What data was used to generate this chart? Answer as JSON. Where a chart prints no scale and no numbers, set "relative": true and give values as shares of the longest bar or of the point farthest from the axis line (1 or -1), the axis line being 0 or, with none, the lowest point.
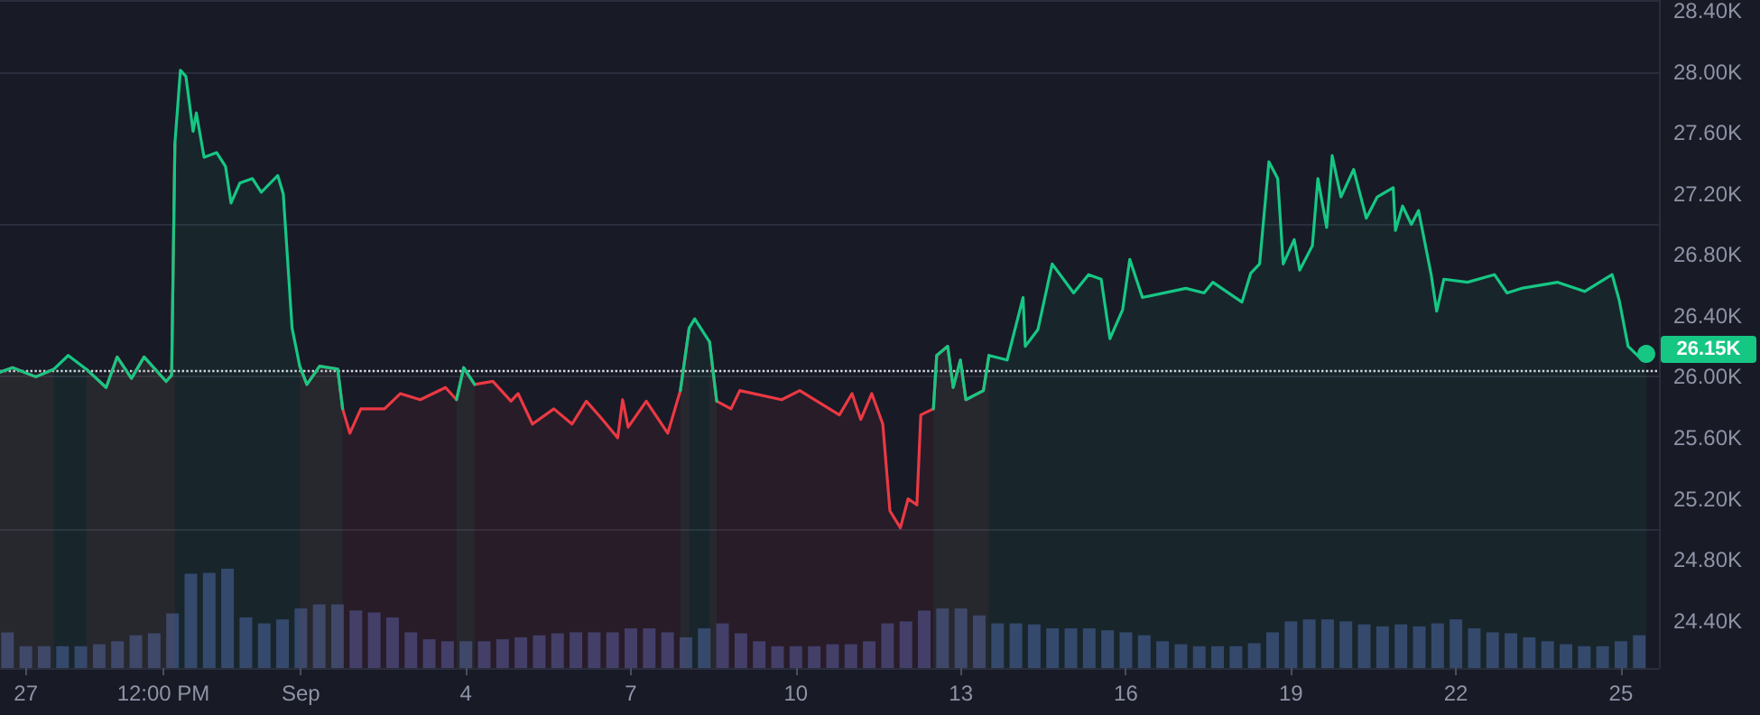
{
  "chart_data": [
    {
      "type": "area",
      "xlim": [
        "--08-26T12:43",
        "--09-25T16:34"
      ],
      "ylim": [
        24090,
        28470
      ],
      "xticks": [
        {
          "value": "--08-27",
          "label": "27"
        },
        {
          "value": "--08-29T12:00",
          "label": "12:00 PM"
        },
        {
          "value": "--09-01",
          "label": "Sep"
        },
        {
          "value": "--09-04",
          "label": "4"
        },
        {
          "value": "--09-07",
          "label": "7"
        },
        {
          "value": "--09-10",
          "label": "10"
        },
        {
          "value": "--09-13",
          "label": "13"
        },
        {
          "value": "--09-16",
          "label": "16"
        },
        {
          "value": "--09-19",
          "label": "19"
        },
        {
          "value": "--09-22",
          "label": "22"
        },
        {
          "value": "--09-25",
          "label": "25"
        }
      ],
      "yticks": [
        {
          "value": 24400,
          "label": "24.40K"
        },
        {
          "value": 24800,
          "label": "24.80K"
        },
        {
          "value": 25200,
          "label": "25.20K"
        },
        {
          "value": 25600,
          "label": "25.60K"
        },
        {
          "value": 26000,
          "label": "26.00K"
        },
        {
          "value": 26400,
          "label": "26.40K"
        },
        {
          "value": 26800,
          "label": "26.80K"
        },
        {
          "value": 27200,
          "label": "27.20K"
        },
        {
          "value": 27600,
          "label": "27.60K"
        },
        {
          "value": 28000,
          "label": "28.00K"
        },
        {
          "value": 28400,
          "label": "28.40K"
        }
      ],
      "grid": "y",
      "x": [
        "--08-26T12:43",
        "--08-26T18:14",
        "--08-27T04:19",
        "--08-27T12:14",
        "--08-27T18:29",
        "--08-28T02:24",
        "--08-28T11:02",
        "--08-28T15:50",
        "--08-28T22:05",
        "--08-29T03:36",
        "--08-29T13:12",
        "--08-29T15:36",
        "--08-29T17:02",
        "--08-29T19:26",
        "--08-29T21:50",
        "--08-30T00:58",
        "--08-30T02:24",
        "--08-30T05:46",
        "--08-30T11:17",
        "--08-30T15:07",
        "--08-30T17:31",
        "--08-30T21:22",
        "--08-31T02:53",
        "--08-31T06:43",
        "--08-31T13:55",
        "--08-31T16:19",
        "--08-31T20:10",
        "--08-31T23:31",
        "--09-01T02:38",
        "--09-01T08:10",
        "--09-01T16:05",
        "--09-01T18:14",
        "--09-01T21:22",
        "--09-02T02:10",
        "--09-02T12:29",
        "--09-02T19:26",
        "--09-03T04:05",
        "--09-03T15:07",
        "--09-03T19:55",
        "--09-03T23:02",
        "--09-04T03:50",
        "--09-04T11:46",
        "--09-04T19:41",
        "--09-04T22:48",
        "--09-05T05:02",
        "--09-05T14:24",
        "--09-05T22:19",
        "--09-06T04:34",
        "--09-06T11:02",
        "--09-06T18:14",
        "--09-06T20:24",
        "--09-06T22:48",
        "--09-07T06:43",
        "--09-07T16:05",
        "--09-07T21:36",
        "--09-08T01:26",
        "--09-08T03:50",
        "--09-08T10:19",
        "--09-08T13:26",
        "--09-08T19:41",
        "--09-08T23:31",
        "--09-09T17:46",
        "--09-10T01:41",
        "--09-10T18:58",
        "--09-11T00:29",
        "--09-11T04:19",
        "--09-11T09:07",
        "--09-11T13:55",
        "--09-11T17:02",
        "--09-11T21:36",
        "--09-12T00:58",
        "--09-12T04:48",
        "--09-12T06:29",
        "--09-12T12:00",
        "--09-12T13:26",
        "--09-12T18:14",
        "--09-12T20:38",
        "--09-12T23:46",
        "--09-13T02:10",
        "--09-13T09:50",
        "--09-13T12:14",
        "--09-13T20:10",
        "--09-14T03:07",
        "--09-14T04:05",
        "--09-14T09:36",
        "--09-14T15:50",
        "--09-15T01:12",
        "--09-15T07:41",
        "--09-15T13:12",
        "--09-15T17:02",
        "--09-15T22:34",
        "--09-16T01:41",
        "--09-16T07:12",
        "--09-17T02:10",
        "--09-17T10:05",
        "--09-17T13:55",
        "--09-18T02:38",
        "--09-18T06:29",
        "--09-18T10:19",
        "--09-18T14:24",
        "--09-18T18:14",
        "--09-18T20:38",
        "--09-19T01:26",
        "--09-19T03:50",
        "--09-19T09:22",
        "--09-19T11:46",
        "--09-19T15:36",
        "--09-19T18:00",
        "--09-19T21:50",
        "--09-20T03:22",
        "--09-20T08:53",
        "--09-20T13:41",
        "--09-20T20:38",
        "--09-20T21:36",
        "--09-21T00:43",
        "--09-21T04:34",
        "--09-21T07:41",
        "--09-21T13:12",
        "--09-21T15:36",
        "--09-21T18:43",
        "--09-22T05:02",
        "--09-22T16:48",
        "--09-22T22:19",
        "--09-23T04:34",
        "--09-23T20:24",
        "--09-24T08:10",
        "--09-24T20:10",
        "--09-24T23:17",
        "--09-25T03:07",
        "--09-25T07:55",
        "--09-25T11:02"
      ],
      "series": [
        {
          "color": "#16c784",
          "values": [
            26030,
            26060,
            26000,
            26050,
            26140,
            26050,
            25930,
            26130,
            25990,
            26130,
            25970,
            26010,
            27530,
            28010,
            27970,
            27610,
            27730,
            27440,
            27470,
            27380,
            27140,
            27270,
            27300,
            27210,
            27320,
            27200,
            26320,
            26070,
            25950,
            26070,
            26050,
            25790,
            null,
            null,
            null,
            null,
            null,
            null,
            25850,
            26060,
            25950,
            null,
            null,
            null,
            null,
            null,
            null,
            null,
            null,
            null,
            null,
            null,
            null,
            null,
            25910,
            26320,
            26380,
            26230,
            25840,
            null,
            null,
            null,
            null,
            null,
            null,
            null,
            null,
            null,
            null,
            null,
            null,
            null,
            null,
            25790,
            26140,
            26200,
            25930,
            26110,
            25850,
            25910,
            26140,
            26110,
            26520,
            26200,
            26310,
            26740,
            26550,
            26670,
            26640,
            26250,
            26440,
            26770,
            26520,
            26580,
            26550,
            26620,
            26490,
            26680,
            26740,
            27410,
            27300,
            26740,
            26900,
            26700,
            26860,
            27300,
            26980,
            27450,
            27180,
            27360,
            27040,
            27180,
            27240,
            26960,
            27120,
            27000,
            27090,
            26670,
            26430,
            26640,
            26620,
            26670,
            26550,
            26580,
            26620,
            26560,
            26670,
            26500,
            26200,
            26130,
            26150
          ]
        },
        {
          "color": "#ea3943",
          "values": [
            26030,
            26060,
            26000,
            26050,
            null,
            26050,
            25930,
            26130,
            25990,
            26130,
            25970,
            26010,
            27530,
            null,
            null,
            null,
            null,
            null,
            null,
            null,
            null,
            null,
            null,
            null,
            null,
            null,
            null,
            26070,
            25950,
            26070,
            26050,
            25790,
            25630,
            25790,
            25790,
            25890,
            25850,
            25930,
            25850,
            26060,
            25950,
            25970,
            25840,
            25890,
            25690,
            25790,
            25690,
            25840,
            25730,
            25600,
            25850,
            25670,
            25840,
            25630,
            25910,
            26320,
            null,
            26230,
            25840,
            25790,
            25910,
            25850,
            25910,
            25750,
            25890,
            25720,
            25890,
            25690,
            25120,
            25010,
            25200,
            25160,
            25750,
            25790,
            26140,
            26200,
            25930,
            26110,
            25850,
            25910,
            26140,
            null,
            null,
            null,
            null,
            null,
            null,
            null,
            null,
            null,
            null,
            null,
            null,
            null,
            null,
            null,
            null,
            null,
            null,
            null,
            null,
            null,
            null,
            null,
            null,
            null,
            null,
            null,
            null,
            null,
            null,
            null,
            null,
            null,
            null,
            null,
            null,
            null,
            null,
            null,
            null,
            null,
            null,
            null,
            null,
            null,
            null,
            null,
            null,
            null,
            null
          ]
        }
      ],
      "ref_lines": [
        {
          "axis": "y",
          "value": 26040,
          "line_style": "dotted",
          "color": "#d6d8e0"
        }
      ],
      "annotations": [
        {
          "text": "26.15K",
          "x": "--09-25T11:02",
          "y": 26150
        }
      ]
    },
    {
      "type": "bar",
      "relative": true,
      "tick_labels": false,
      "xlim": [
        "--08-26T12:43",
        "--09-25T16:34"
      ],
      "color": "#36406b",
      "x": [
        "--08-26T16:00",
        "--08-27T00:00",
        "--08-27T08:00",
        "--08-27T16:00",
        "--08-28T00:00",
        "--08-28T08:00",
        "--08-28T16:00",
        "--08-29T00:00",
        "--08-29T08:00",
        "--08-29T16:00",
        "--08-30T00:00",
        "--08-30T08:00",
        "--08-30T16:00",
        "--08-31T00:00",
        "--08-31T08:00",
        "--08-31T16:00",
        "--09-01T00:00",
        "--09-01T08:00",
        "--09-01T16:00",
        "--09-02T00:00",
        "--09-02T08:00",
        "--09-02T16:00",
        "--09-03T00:00",
        "--09-03T08:00",
        "--09-03T16:00",
        "--09-04T00:00",
        "--09-04T08:00",
        "--09-04T16:00",
        "--09-05T00:00",
        "--09-05T08:00",
        "--09-05T16:00",
        "--09-06T00:00",
        "--09-06T08:00",
        "--09-06T16:00",
        "--09-07T00:00",
        "--09-07T08:00",
        "--09-07T16:00",
        "--09-08T00:00",
        "--09-08T08:00",
        "--09-08T16:00",
        "--09-09T00:00",
        "--09-09T08:00",
        "--09-09T16:00",
        "--09-10T00:00",
        "--09-10T08:00",
        "--09-10T16:00",
        "--09-11T00:00",
        "--09-11T08:00",
        "--09-11T16:00",
        "--09-12T00:00",
        "--09-12T08:00",
        "--09-12T16:00",
        "--09-13T00:00",
        "--09-13T08:00",
        "--09-13T16:00",
        "--09-14T00:00",
        "--09-14T08:00",
        "--09-14T16:00",
        "--09-15T00:00",
        "--09-15T08:00",
        "--09-15T16:00",
        "--09-16T00:00",
        "--09-16T08:00",
        "--09-16T16:00",
        "--09-17T00:00",
        "--09-17T08:00",
        "--09-17T16:00",
        "--09-18T00:00",
        "--09-18T08:00",
        "--09-18T16:00",
        "--09-19T00:00",
        "--09-19T08:00",
        "--09-19T16:00",
        "--09-20T00:00",
        "--09-20T08:00",
        "--09-20T16:00",
        "--09-21T00:00",
        "--09-21T08:00",
        "--09-21T16:00",
        "--09-22T00:00",
        "--09-22T08:00",
        "--09-22T16:00",
        "--09-23T00:00",
        "--09-23T08:00",
        "--09-23T16:00",
        "--09-24T00:00",
        "--09-24T08:00",
        "--09-24T16:00",
        "--09-25T00:00",
        "--09-25T08:00"
      ],
      "values": [
        0.36,
        0.22,
        0.22,
        0.22,
        0.22,
        0.24,
        0.27,
        0.33,
        0.35,
        0.55,
        0.95,
        0.96,
        1,
        0.51,
        0.45,
        0.49,
        0.6,
        0.64,
        0.64,
        0.58,
        0.56,
        0.51,
        0.36,
        0.29,
        0.27,
        0.27,
        0.27,
        0.29,
        0.31,
        0.33,
        0.35,
        0.36,
        0.36,
        0.36,
        0.4,
        0.4,
        0.36,
        0.31,
        0.4,
        0.45,
        0.35,
        0.27,
        0.22,
        0.22,
        0.22,
        0.24,
        0.24,
        0.27,
        0.45,
        0.47,
        0.58,
        0.6,
        0.6,
        0.53,
        0.45,
        0.45,
        0.44,
        0.4,
        0.4,
        0.4,
        0.38,
        0.36,
        0.33,
        0.27,
        0.24,
        0.22,
        0.22,
        0.22,
        0.25,
        0.36,
        0.47,
        0.49,
        0.49,
        0.47,
        0.44,
        0.42,
        0.44,
        0.42,
        0.45,
        0.49,
        0.4,
        0.36,
        0.35,
        0.31,
        0.27,
        0.24,
        0.22,
        0.22,
        0.27,
        0.33
      ]
    }
  ]
}
